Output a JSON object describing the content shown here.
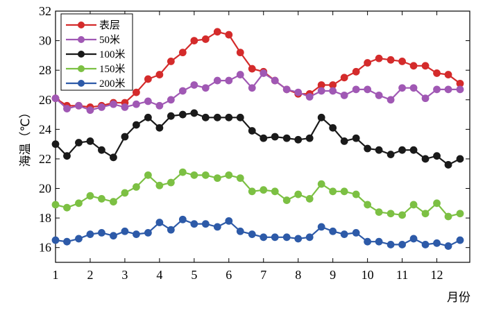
{
  "chart_data": {
    "type": "line",
    "xlabel": "月份",
    "ylabel": "海温（℃）",
    "xlim": [
      1,
      12.95
    ],
    "ylim": [
      15,
      32
    ],
    "xticks": [
      1,
      2,
      3,
      4,
      5,
      6,
      7,
      8,
      9,
      10,
      11,
      12
    ],
    "yticks": [
      16,
      18,
      20,
      22,
      24,
      26,
      28,
      30,
      32
    ],
    "legend_position": "top-left",
    "x": [
      1.0,
      1.33,
      1.67,
      2.0,
      2.33,
      2.67,
      3.0,
      3.33,
      3.67,
      4.0,
      4.33,
      4.67,
      5.0,
      5.33,
      5.67,
      6.0,
      6.33,
      6.67,
      7.0,
      7.33,
      7.67,
      8.0,
      8.33,
      8.67,
      9.0,
      9.33,
      9.67,
      10.0,
      10.33,
      10.67,
      11.0,
      11.33,
      11.67,
      12.0,
      12.33,
      12.67
    ],
    "series": [
      {
        "name": "表层",
        "color": "#d42b2b",
        "values": [
          26.1,
          25.6,
          25.6,
          25.5,
          25.6,
          25.8,
          25.8,
          26.5,
          27.4,
          27.7,
          28.6,
          29.2,
          30.0,
          30.1,
          30.6,
          30.4,
          29.2,
          28.1,
          27.9,
          27.3,
          26.7,
          26.4,
          26.4,
          27.0,
          27.0,
          27.5,
          27.9,
          28.5,
          28.8,
          28.7,
          28.6,
          28.3,
          28.3,
          27.8,
          27.7,
          27.1
        ]
      },
      {
        "name": "50米",
        "color": "#a058b4",
        "values": [
          26.1,
          25.4,
          25.6,
          25.3,
          25.5,
          25.7,
          25.5,
          25.7,
          25.9,
          25.6,
          26.0,
          26.6,
          27.0,
          26.8,
          27.3,
          27.3,
          27.7,
          26.8,
          27.8,
          27.3,
          26.7,
          26.5,
          26.2,
          26.6,
          26.6,
          26.3,
          26.7,
          26.7,
          26.3,
          26.0,
          26.8,
          26.8,
          26.1,
          26.7,
          26.7,
          26.7
        ]
      },
      {
        "name": "100米",
        "color": "#1a1a1a",
        "values": [
          23.0,
          22.2,
          23.1,
          23.2,
          22.6,
          22.1,
          23.5,
          24.3,
          24.8,
          24.1,
          24.9,
          25.0,
          25.1,
          24.8,
          24.8,
          24.8,
          24.8,
          23.9,
          23.4,
          23.5,
          23.4,
          23.3,
          23.4,
          24.8,
          24.1,
          23.2,
          23.4,
          22.7,
          22.6,
          22.3,
          22.6,
          22.6,
          22.0,
          22.2,
          21.6,
          22.0
        ]
      },
      {
        "name": "150米",
        "color": "#7cc043",
        "values": [
          18.9,
          18.7,
          19.0,
          19.5,
          19.3,
          19.1,
          19.7,
          20.1,
          20.9,
          20.2,
          20.4,
          21.1,
          20.9,
          20.9,
          20.7,
          20.9,
          20.7,
          19.8,
          19.9,
          19.8,
          19.2,
          19.6,
          19.3,
          20.3,
          19.8,
          19.8,
          19.6,
          18.9,
          18.4,
          18.3,
          18.2,
          18.9,
          18.3,
          19.0,
          18.1,
          18.3
        ]
      },
      {
        "name": "200米",
        "color": "#2d5aa8",
        "values": [
          16.5,
          16.4,
          16.6,
          16.9,
          17.0,
          16.8,
          17.1,
          16.9,
          17.0,
          17.7,
          17.2,
          17.9,
          17.6,
          17.6,
          17.4,
          17.8,
          17.1,
          16.9,
          16.7,
          16.7,
          16.7,
          16.6,
          16.7,
          17.4,
          17.1,
          16.9,
          17.0,
          16.4,
          16.4,
          16.2,
          16.2,
          16.6,
          16.2,
          16.3,
          16.1,
          16.5
        ]
      }
    ]
  }
}
